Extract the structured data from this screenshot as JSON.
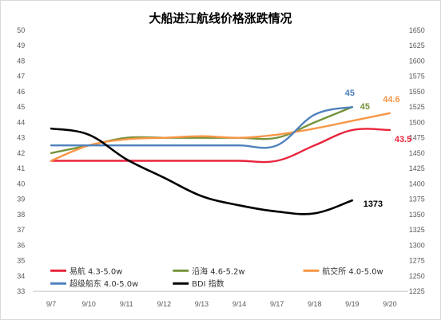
{
  "chart_data": {
    "type": "line",
    "title": "大船进江航线价格涨跌情况",
    "categories": [
      "9/7",
      "9/10",
      "9/11",
      "9/12",
      "9/13",
      "9/14",
      "9/17",
      "9/18",
      "9/19",
      "9/20"
    ],
    "y_left": {
      "min": 33,
      "max": 50,
      "step": 1
    },
    "y_right": {
      "min": 1225,
      "max": 1650,
      "step": 25
    },
    "series": [
      {
        "name": "易航 4.3-5.0w",
        "color": "#e8243c",
        "axis": "left",
        "values": [
          41.5,
          41.5,
          41.5,
          41.5,
          41.5,
          41.5,
          41.5,
          42.5,
          43.5,
          43.5
        ],
        "end_label": "43.5"
      },
      {
        "name": "沿海 4.6-5.2w",
        "color": "#76933c",
        "axis": "left",
        "values": [
          42,
          42.5,
          43,
          43,
          43,
          43,
          43,
          44,
          45,
          null
        ],
        "end_label": "45"
      },
      {
        "name": "航交所 4.0-5.0w",
        "color": "#f79646",
        "axis": "left",
        "values": [
          41.5,
          42.5,
          42.9,
          43,
          43.1,
          43,
          43.2,
          43.6,
          44.1,
          44.6
        ],
        "end_label": "44.6"
      },
      {
        "name": "超级船东 4.0-5.0w",
        "color": "#4f81bd",
        "axis": "left",
        "values": [
          42.5,
          42.5,
          42.5,
          42.5,
          42.5,
          42.5,
          42.5,
          44.5,
          45,
          null
        ],
        "end_label": "45"
      },
      {
        "name": "BDI 指数",
        "color": "#000000",
        "axis": "right",
        "values": [
          1490,
          1480,
          1440,
          1410,
          1380,
          1365,
          1355,
          1352,
          1373,
          null
        ],
        "end_label": "1373"
      }
    ],
    "legend": "bottom",
    "grid": false
  }
}
